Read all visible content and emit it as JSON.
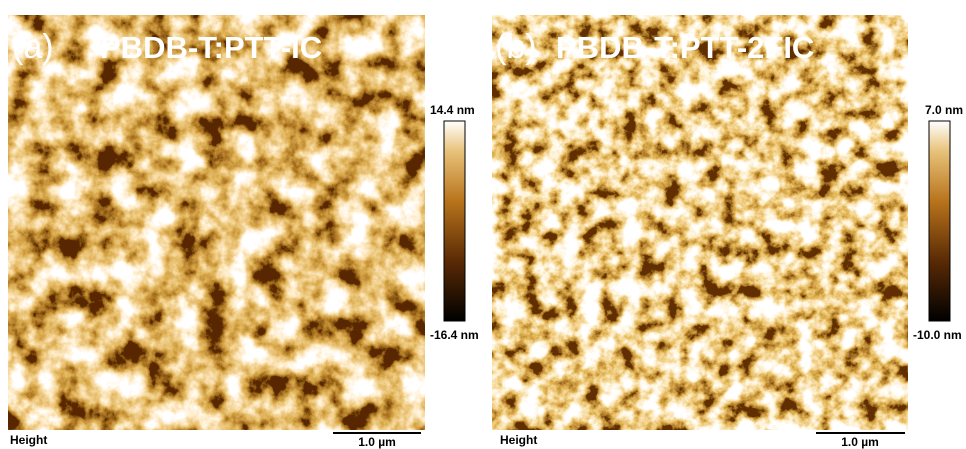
{
  "panels": [
    {
      "label": "(a)",
      "title": "PBDB-T:PTT-IC",
      "colorbar": {
        "max": "14.4 nm",
        "min": "-16.4 nm"
      },
      "footer": "Height",
      "scale_bar": "1.0 µm"
    },
    {
      "label": "(b)",
      "title": "PBDB-T:PTT-2FIC",
      "colorbar": {
        "max": "7.0 nm",
        "min": "-10.0 nm"
      },
      "footer": "Height",
      "scale_bar": "1.0 µm"
    }
  ]
}
